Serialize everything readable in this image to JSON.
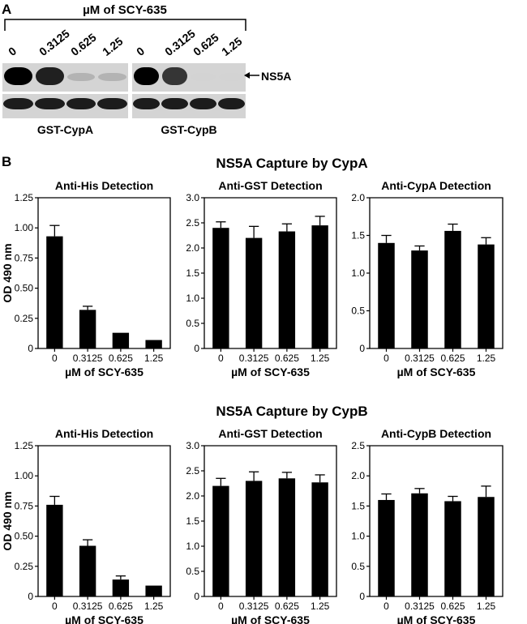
{
  "panel_a": {
    "letter": "A",
    "header": "µM of SCY-635",
    "lanes": [
      "0",
      "0.3125",
      "0.625",
      "1.25"
    ],
    "blots": [
      {
        "name": "GST-CypA",
        "ns5a_intensity": [
          1.0,
          0.85,
          0.15,
          0.15
        ],
        "loading_intensity": [
          1.0,
          1.0,
          1.0,
          1.0
        ]
      },
      {
        "name": "GST-CypB",
        "ns5a_intensity": [
          1.0,
          0.75,
          0.02,
          0.02
        ],
        "loading_intensity": [
          1.0,
          1.0,
          1.0,
          1.0
        ]
      }
    ],
    "band_label": "NS5A"
  },
  "panel_b": {
    "letter": "B",
    "groups": [
      {
        "title": "NS5A Capture by CypA"
      },
      {
        "title": "NS5A Capture by CypB"
      }
    ]
  },
  "chart_data": [
    {
      "type": "bar",
      "group": 0,
      "title": "Anti-His Detection",
      "xlabel": "µM of SCY-635",
      "ylabel": "OD 490 nm",
      "categories": [
        "0",
        "0.3125",
        "0.625",
        "1.25"
      ],
      "values": [
        0.93,
        0.32,
        0.13,
        0.07
      ],
      "errors": [
        0.09,
        0.03,
        0,
        0
      ],
      "ylim": [
        0,
        1.25
      ],
      "yticks": [
        "0",
        "0.25",
        "0.50",
        "0.75",
        "1.00",
        "1.25"
      ]
    },
    {
      "type": "bar",
      "group": 0,
      "title": "Anti-GST Detection",
      "xlabel": "µM of SCY-635",
      "ylabel": "",
      "categories": [
        "0",
        "0.3125",
        "0.625",
        "1.25"
      ],
      "values": [
        2.4,
        2.2,
        2.33,
        2.45
      ],
      "errors": [
        0.12,
        0.23,
        0.15,
        0.18
      ],
      "ylim": [
        0,
        3.0
      ],
      "yticks": [
        "0",
        "0.5",
        "1.0",
        "1.5",
        "2.0",
        "2.5",
        "3.0"
      ]
    },
    {
      "type": "bar",
      "group": 0,
      "title": "Anti-CypA Detection",
      "xlabel": "µM of SCY-635",
      "ylabel": "",
      "categories": [
        "0",
        "0.3125",
        "0.625",
        "1.25"
      ],
      "values": [
        1.4,
        1.3,
        1.56,
        1.38
      ],
      "errors": [
        0.1,
        0.06,
        0.09,
        0.09
      ],
      "ylim": [
        0,
        2.0
      ],
      "yticks": [
        "0",
        "0.5",
        "1.0",
        "1.5",
        "2.0"
      ]
    },
    {
      "type": "bar",
      "group": 1,
      "title": "Anti-His Detection",
      "xlabel": "µM of SCY-635",
      "ylabel": "OD 490 nm",
      "categories": [
        "0",
        "0.3125",
        "0.625",
        "1.25"
      ],
      "values": [
        0.76,
        0.42,
        0.14,
        0.09
      ],
      "errors": [
        0.07,
        0.05,
        0.03,
        0
      ],
      "ylim": [
        0,
        1.25
      ],
      "yticks": [
        "0",
        "0.25",
        "0.50",
        "0.75",
        "1.00",
        "1.25"
      ]
    },
    {
      "type": "bar",
      "group": 1,
      "title": "Anti-GST Detection",
      "xlabel": "µM of SCY-635",
      "ylabel": "",
      "categories": [
        "0",
        "0.3125",
        "0.625",
        "1.25"
      ],
      "values": [
        2.2,
        2.3,
        2.35,
        2.27
      ],
      "errors": [
        0.15,
        0.18,
        0.12,
        0.15
      ],
      "ylim": [
        0,
        3.0
      ],
      "yticks": [
        "0",
        "0.5",
        "1.0",
        "1.5",
        "2.0",
        "2.5",
        "3.0"
      ]
    },
    {
      "type": "bar",
      "group": 1,
      "title": "Anti-CypB Detection",
      "xlabel": "µM of SCY-635",
      "ylabel": "",
      "categories": [
        "0",
        "0.3125",
        "0.625",
        "1.25"
      ],
      "values": [
        1.6,
        1.71,
        1.58,
        1.65
      ],
      "errors": [
        0.1,
        0.08,
        0.08,
        0.18
      ],
      "ylim": [
        0,
        2.5
      ],
      "yticks": [
        "0",
        "0.5",
        "1.0",
        "1.5",
        "2.0",
        "2.5"
      ]
    }
  ]
}
